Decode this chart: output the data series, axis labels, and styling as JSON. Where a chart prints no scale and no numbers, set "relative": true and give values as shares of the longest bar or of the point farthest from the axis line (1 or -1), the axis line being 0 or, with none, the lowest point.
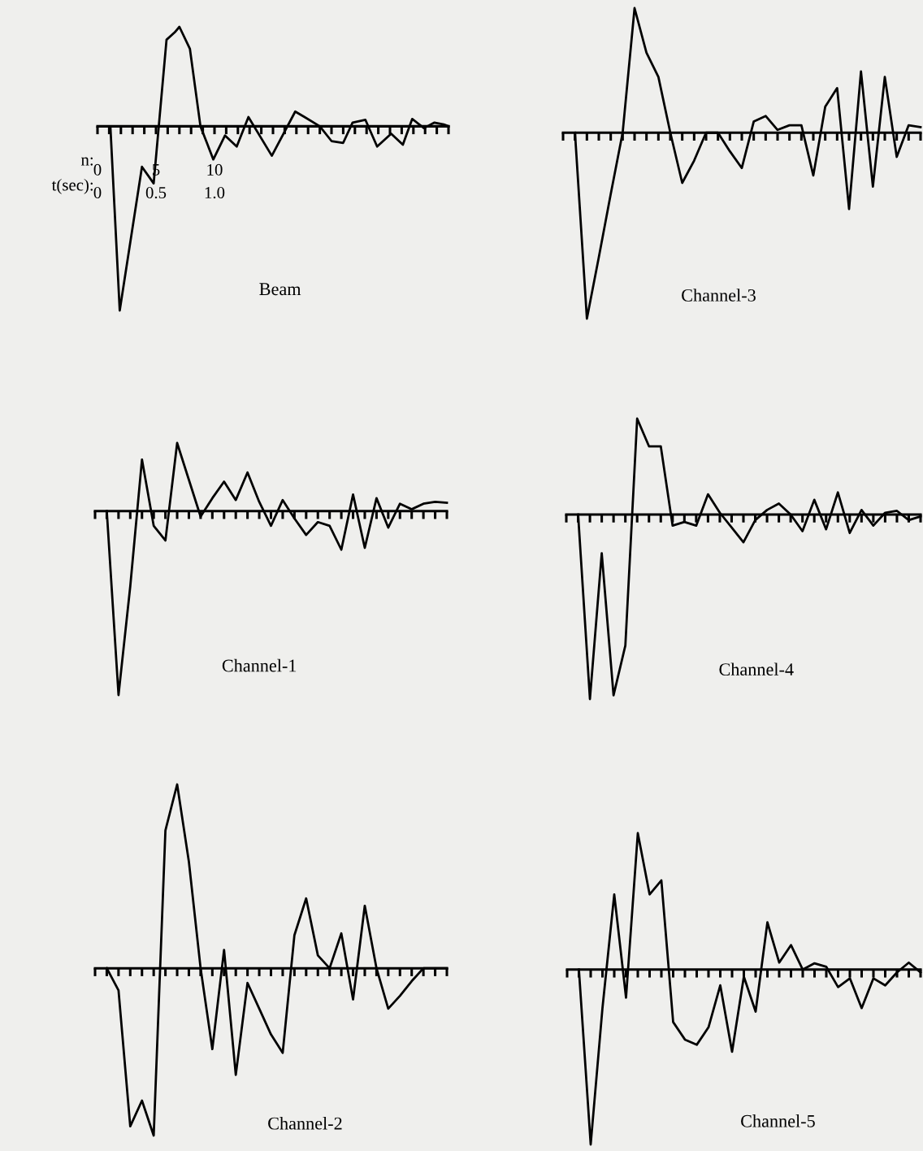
{
  "chart_data": [
    {
      "type": "line",
      "title": "Beam",
      "relative": true,
      "color": "#000000",
      "xlim": [
        0,
        30
      ],
      "xlabel": "n:",
      "x2label": "t(sec):",
      "x2lim": [
        0,
        3.0
      ],
      "xticks": [
        0,
        {
          "value": 1,
          "label": null
        },
        {
          "value": 2,
          "label": null
        },
        {
          "value": 3,
          "label": null
        },
        {
          "value": 4,
          "label": null
        },
        5,
        {
          "value": 6,
          "label": null
        },
        {
          "value": 7,
          "label": null
        },
        {
          "value": 8,
          "label": null
        },
        {
          "value": 9,
          "label": null
        },
        10,
        {
          "value": 11,
          "label": null
        },
        {
          "value": 12,
          "label": null
        },
        {
          "value": 13,
          "label": null
        },
        {
          "value": 14,
          "label": null
        },
        {
          "value": 15,
          "label": null
        },
        {
          "value": 16,
          "label": null
        },
        {
          "value": 17,
          "label": null
        },
        {
          "value": 18,
          "label": null
        },
        {
          "value": 19,
          "label": null
        },
        {
          "value": 20,
          "label": null
        },
        {
          "value": 21,
          "label": null
        },
        {
          "value": 22,
          "label": null
        },
        {
          "value": 23,
          "label": null
        },
        {
          "value": 24,
          "label": null
        },
        {
          "value": 25,
          "label": null
        },
        {
          "value": 26,
          "label": null
        },
        {
          "value": 27,
          "label": null
        },
        {
          "value": 28,
          "label": null
        },
        {
          "value": 29,
          "label": null
        },
        {
          "value": 30,
          "label": null
        }
      ],
      "x2ticks": [
        0,
        0.5,
        {
          "value": 1.0,
          "label": "1.0"
        }
      ],
      "x": [
        1.1,
        1.9,
        3.8,
        4.8,
        5.9,
        6.6,
        7.0,
        7.9,
        8.8,
        9.9,
        10.9,
        11.9,
        12.9,
        14.9,
        16.9,
        17.7,
        19.0,
        20.0,
        21.0,
        21.8,
        22.9,
        23.9,
        25.1,
        26.1,
        26.9,
        27.9,
        28.8,
        29.6,
        30.0
      ],
      "values": [
        0,
        -1,
        -0.22,
        -0.31,
        0.47,
        0.51,
        0.54,
        0.42,
        0,
        -0.18,
        -0.05,
        -0.11,
        0.05,
        -0.16,
        0.08,
        0.05,
        0,
        -0.08,
        -0.09,
        0.02,
        0.035,
        -0.11,
        -0.04,
        -0.1,
        0.04,
        -0.01,
        0.02,
        0.01,
        0
      ]
    },
    {
      "type": "line",
      "title": "Channel-3",
      "relative": true,
      "color": "#000000",
      "categories": [
        null,
        null,
        null,
        null,
        null,
        null,
        null,
        null,
        null,
        null,
        null,
        null,
        null,
        null,
        null,
        null,
        null,
        null,
        null,
        null,
        null,
        null,
        null,
        null,
        null,
        null,
        null,
        null,
        null,
        null,
        null
      ],
      "values": [
        null,
        0,
        -1,
        -0.67,
        -0.33,
        0,
        0.67,
        0.43,
        0.3,
        0,
        -0.27,
        -0.15,
        0,
        0,
        -0.1,
        -0.19,
        0.06,
        0.09,
        0.015,
        0.04,
        0.04,
        -0.23,
        0.14,
        0.24,
        -0.41,
        0.33,
        -0.29,
        0.3,
        -0.13,
        0.04,
        0.03
      ]
    },
    {
      "type": "line",
      "title": "Channel-1",
      "relative": true,
      "color": "#000000",
      "categories": [
        null,
        null,
        null,
        null,
        null,
        null,
        null,
        null,
        null,
        null,
        null,
        null,
        null,
        null,
        null,
        null,
        null,
        null,
        null,
        null,
        null,
        null,
        null,
        null,
        null,
        null,
        null,
        null,
        null,
        null,
        null
      ],
      "values": [
        null,
        0,
        -1,
        -0.41,
        0.28,
        -0.08,
        -0.16,
        0.37,
        0.17,
        -0.03,
        0.07,
        0.16,
        0.06,
        0.21,
        0.05,
        -0.08,
        0.06,
        -0.04,
        -0.13,
        -0.06,
        -0.08,
        -0.21,
        0.09,
        -0.2,
        0.07,
        -0.09,
        0.04,
        0.01,
        0.04,
        0.05,
        0.045
      ]
    },
    {
      "type": "line",
      "title": "Channel-4",
      "relative": true,
      "color": "#000000",
      "categories": [
        null,
        null,
        null,
        null,
        null,
        null,
        null,
        null,
        null,
        null,
        null,
        null,
        null,
        null,
        null,
        null,
        null,
        null,
        null,
        null,
        null,
        null,
        null,
        null,
        null,
        null,
        null,
        null,
        null,
        null,
        null
      ],
      "values": [
        null,
        0,
        -1,
        -0.21,
        -0.98,
        -0.71,
        0.52,
        0.37,
        0.37,
        -0.06,
        -0.04,
        -0.06,
        0.11,
        0.01,
        -0.07,
        -0.15,
        -0.03,
        0.025,
        0.06,
        0,
        -0.09,
        0.08,
        -0.08,
        0.12,
        -0.1,
        0.025,
        -0.06,
        0.01,
        0.02,
        -0.03,
        -0.01
      ]
    },
    {
      "type": "line",
      "title": "Channel-2",
      "relative": true,
      "color": "#000000",
      "categories": [
        null,
        null,
        null,
        null,
        null,
        null,
        null,
        null,
        null,
        null,
        null,
        null,
        null,
        null,
        null,
        null,
        null,
        null,
        null,
        null,
        null,
        null,
        null,
        null,
        null,
        null,
        null,
        null,
        null,
        null,
        null
      ],
      "values": [
        null,
        0,
        -0.12,
        -0.86,
        -0.72,
        -0.91,
        0.75,
        1.0,
        0.58,
        0,
        -0.44,
        0.1,
        -0.58,
        -0.08,
        -0.22,
        -0.36,
        -0.46,
        0.18,
        0.38,
        0.07,
        0,
        0.19,
        -0.17,
        0.34,
        0,
        -0.22,
        -0.15,
        -0.07,
        0,
        0,
        0
      ]
    },
    {
      "type": "line",
      "title": "Channel-5",
      "relative": true,
      "color": "#000000",
      "categories": [
        null,
        null,
        null,
        null,
        null,
        null,
        null,
        null,
        null,
        null,
        null,
        null,
        null,
        null,
        null,
        null,
        null,
        null,
        null,
        null,
        null,
        null,
        null,
        null,
        null,
        null,
        null,
        null,
        null,
        null,
        null
      ],
      "values": [
        null,
        0,
        -1,
        -0.22,
        0.43,
        -0.16,
        0.78,
        0.43,
        0.51,
        -0.3,
        -0.4,
        -0.43,
        -0.33,
        -0.09,
        -0.47,
        -0.04,
        -0.24,
        0.27,
        0.04,
        0.14,
        0,
        0.036,
        0.016,
        -0.1,
        -0.05,
        -0.22,
        -0.05,
        -0.09,
        -0.016,
        0.04,
        -0.016
      ]
    }
  ]
}
